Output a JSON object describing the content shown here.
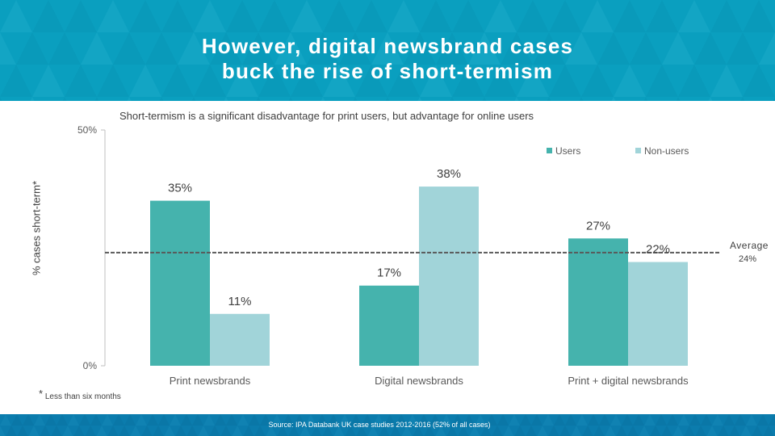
{
  "header": {
    "title": "However, digital newsbrand cases\nbuck the rise of short-termism"
  },
  "colors": {
    "header_bg": "#0a9fbf",
    "footer_bg": "#0b7cad",
    "users": "#45b3ad",
    "non_users": "#a1d4d9",
    "average_line": "#595959"
  },
  "footnote": {
    "marker": "*",
    "text": "Less than six months"
  },
  "footer": {
    "source": "Source: IPA Databank UK case studies 2012-2016 (52% of all cases)"
  },
  "chart_data": {
    "type": "bar",
    "title": "Short-termism is a significant disadvantage for print users, but advantage for online users",
    "xlabel": "",
    "ylabel": "% cases short-term*",
    "ylim": [
      0,
      50
    ],
    "y_tick_labels": [
      "0%",
      "50%"
    ],
    "categories": [
      "Print newsbrands",
      "Digital newsbrands",
      "Print + digital newsbrands"
    ],
    "series": [
      {
        "name": "Users",
        "values": [
          35,
          17,
          27
        ],
        "labels": [
          "35%",
          "17%",
          "27%"
        ]
      },
      {
        "name": "Non-users",
        "values": [
          11,
          38,
          22
        ],
        "labels": [
          "11%",
          "38%",
          "22%"
        ]
      }
    ],
    "reference_line": {
      "label": "Average",
      "value": 24,
      "value_label": "24%"
    },
    "legend_position": "top-right"
  }
}
